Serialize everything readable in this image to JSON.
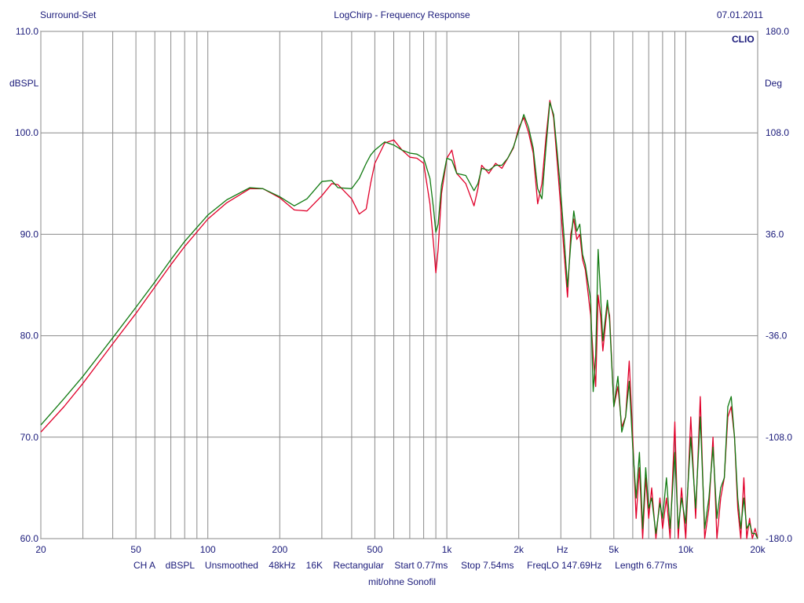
{
  "header": {
    "left": "Surround-Set",
    "center": "LogChirp - Frequency Response",
    "right": "07.01.2011"
  },
  "brand": "CLIO",
  "footer": {
    "line1": "CH A    dBSPL    Unsmoothed    48kHz    16K    Rectangular    Start 0.77ms     Stop 7.54ms     FreqLO 147.69Hz     Length 6.77ms",
    "line2": "mit/ohne Sonofil"
  },
  "colors": {
    "background": "#ffffff",
    "grid": "#8a8a8a",
    "text": "#1a1a7a",
    "trace_red": "#e0002a",
    "trace_green": "#117a11"
  },
  "chart_data": {
    "type": "line",
    "title": "LogChirp - Frequency Response",
    "xscale": "log",
    "xlim": [
      20,
      20000
    ],
    "ylim": [
      60,
      110
    ],
    "y2lim": [
      -180,
      180
    ],
    "ylabel": "dBSPL",
    "y2label": "Deg",
    "x_unit_label": "Hz",
    "grid": true,
    "x_ticks": [
      {
        "value": 20,
        "label": "20"
      },
      {
        "value": 50,
        "label": "50"
      },
      {
        "value": 100,
        "label": "100"
      },
      {
        "value": 200,
        "label": "200"
      },
      {
        "value": 500,
        "label": "500"
      },
      {
        "value": 1000,
        "label": "1k"
      },
      {
        "value": 2000,
        "label": "2k"
      },
      {
        "value": 5000,
        "label": "5k"
      },
      {
        "value": 10000,
        "label": "10k"
      },
      {
        "value": 20000,
        "label": "20k"
      }
    ],
    "y_ticks": [
      {
        "value": 60,
        "label": "60.0"
      },
      {
        "value": 70,
        "label": "70.0"
      },
      {
        "value": 80,
        "label": "80.0"
      },
      {
        "value": 90,
        "label": "90.0"
      },
      {
        "value": 100,
        "label": "100.0"
      },
      {
        "value": 110,
        "label": "110.0"
      }
    ],
    "y2_ticks": [
      {
        "value": -180,
        "label": "-180.0"
      },
      {
        "value": -108,
        "label": "-108.0"
      },
      {
        "value": -36,
        "label": "-36.0"
      },
      {
        "value": 36,
        "label": "36.0"
      },
      {
        "value": 108,
        "label": "108.0"
      },
      {
        "value": 180,
        "label": "180.0"
      }
    ],
    "series": [
      {
        "color": "#e0002a",
        "x": [
          20,
          25,
          30,
          40,
          50,
          60,
          70,
          80,
          100,
          120,
          150,
          170,
          200,
          230,
          260,
          300,
          330,
          350,
          400,
          430,
          460,
          480,
          500,
          550,
          600,
          650,
          700,
          750,
          800,
          850,
          880,
          900,
          920,
          950,
          1000,
          1050,
          1100,
          1200,
          1300,
          1350,
          1400,
          1500,
          1600,
          1700,
          1800,
          1900,
          2000,
          2100,
          2200,
          2300,
          2400,
          2500,
          2600,
          2700,
          2800,
          2900,
          3000,
          3100,
          3200,
          3300,
          3400,
          3500,
          3600,
          3700,
          3800,
          4000,
          4100,
          4200,
          4300,
          4400,
          4500,
          4700,
          4800,
          5000,
          5200,
          5400,
          5600,
          5800,
          6000,
          6200,
          6400,
          6600,
          6800,
          7000,
          7200,
          7500,
          7800,
          8000,
          8300,
          8600,
          9000,
          9300,
          9600,
          10000,
          10500,
          11000,
          11500,
          12000,
          12500,
          13000,
          13500,
          14000,
          14500,
          15000,
          15500,
          16000,
          16500,
          17000,
          17500,
          18000,
          18500,
          19000,
          19500,
          20000
        ],
        "y": [
          70.5,
          73.0,
          75.3,
          79.2,
          82.2,
          84.8,
          87.0,
          88.8,
          91.5,
          93.1,
          94.5,
          94.5,
          93.6,
          92.4,
          92.3,
          93.8,
          95.0,
          94.9,
          93.5,
          92.0,
          92.5,
          95.0,
          97.0,
          99.0,
          99.3,
          98.3,
          97.6,
          97.5,
          97.0,
          93.0,
          89.0,
          86.2,
          88.5,
          94.0,
          97.5,
          98.3,
          96.0,
          95.0,
          92.8,
          94.5,
          96.8,
          96.0,
          97.0,
          96.5,
          97.5,
          98.5,
          100.5,
          101.5,
          100.0,
          98.0,
          93.0,
          95.0,
          99.5,
          103.2,
          101.5,
          97.0,
          92.5,
          88.0,
          83.8,
          90.0,
          91.5,
          89.5,
          90.0,
          87.5,
          86.5,
          82.0,
          78.0,
          75.0,
          84.0,
          82.0,
          78.5,
          83.0,
          82.0,
          73.0,
          75.0,
          71.0,
          72.0,
          77.5,
          70.0,
          62.0,
          67.0,
          60.0,
          66.0,
          62.0,
          65.0,
          60.0,
          64.0,
          61.0,
          64.0,
          60.0,
          71.5,
          60.0,
          65.0,
          60.0,
          72.0,
          62.0,
          74.0,
          60.0,
          63.0,
          70.0,
          60.0,
          64.0,
          66.0,
          72.0,
          73.0,
          70.0,
          63.0,
          60.0,
          66.0,
          60.0,
          62.0,
          60.0,
          61.0,
          60.0
        ]
      },
      {
        "color": "#117a11",
        "x": [
          20,
          25,
          30,
          40,
          50,
          60,
          70,
          80,
          100,
          120,
          150,
          170,
          200,
          230,
          260,
          300,
          330,
          350,
          400,
          430,
          460,
          480,
          500,
          550,
          600,
          650,
          700,
          750,
          800,
          850,
          880,
          900,
          920,
          950,
          1000,
          1050,
          1100,
          1200,
          1300,
          1350,
          1400,
          1500,
          1600,
          1700,
          1800,
          1900,
          2000,
          2100,
          2200,
          2300,
          2400,
          2500,
          2600,
          2700,
          2800,
          2900,
          3000,
          3100,
          3200,
          3300,
          3400,
          3500,
          3600,
          3700,
          3800,
          4000,
          4100,
          4200,
          4300,
          4400,
          4500,
          4700,
          4800,
          5000,
          5200,
          5400,
          5600,
          5800,
          6000,
          6200,
          6400,
          6600,
          6800,
          7000,
          7200,
          7500,
          7800,
          8000,
          8300,
          8600,
          9000,
          9300,
          9600,
          10000,
          10500,
          11000,
          11500,
          12000,
          12500,
          13000,
          13500,
          14000,
          14500,
          15000,
          15500,
          16000,
          16500,
          17000,
          17500,
          18000,
          18500,
          19000,
          19500,
          20000
        ],
        "y": [
          71.2,
          73.8,
          76.0,
          79.8,
          82.8,
          85.3,
          87.5,
          89.3,
          91.9,
          93.4,
          94.6,
          94.5,
          93.7,
          92.8,
          93.5,
          95.2,
          95.3,
          94.6,
          94.5,
          95.5,
          97.0,
          97.8,
          98.3,
          99.1,
          98.8,
          98.3,
          98.0,
          97.9,
          97.5,
          95.5,
          92.5,
          90.2,
          91.0,
          94.8,
          97.5,
          97.3,
          96.0,
          95.8,
          94.3,
          95.0,
          96.5,
          96.3,
          96.8,
          96.8,
          97.5,
          98.6,
          100.2,
          101.8,
          100.5,
          98.5,
          94.5,
          93.5,
          98.5,
          103.0,
          101.8,
          98.0,
          94.0,
          89.5,
          84.8,
          89.0,
          92.3,
          90.3,
          91.0,
          88.0,
          87.0,
          83.5,
          74.5,
          78.0,
          88.5,
          84.0,
          79.5,
          83.5,
          81.5,
          73.0,
          76.0,
          70.5,
          72.0,
          75.5,
          69.0,
          64.0,
          68.5,
          61.0,
          67.0,
          63.0,
          64.0,
          60.5,
          63.5,
          62.0,
          66.0,
          61.0,
          68.5,
          61.0,
          64.0,
          61.5,
          70.0,
          63.0,
          72.0,
          61.0,
          64.0,
          69.0,
          62.0,
          65.0,
          66.0,
          73.0,
          74.0,
          70.0,
          64.0,
          61.0,
          64.0,
          61.0,
          61.5,
          60.5,
          60.5,
          60.0
        ]
      }
    ]
  }
}
